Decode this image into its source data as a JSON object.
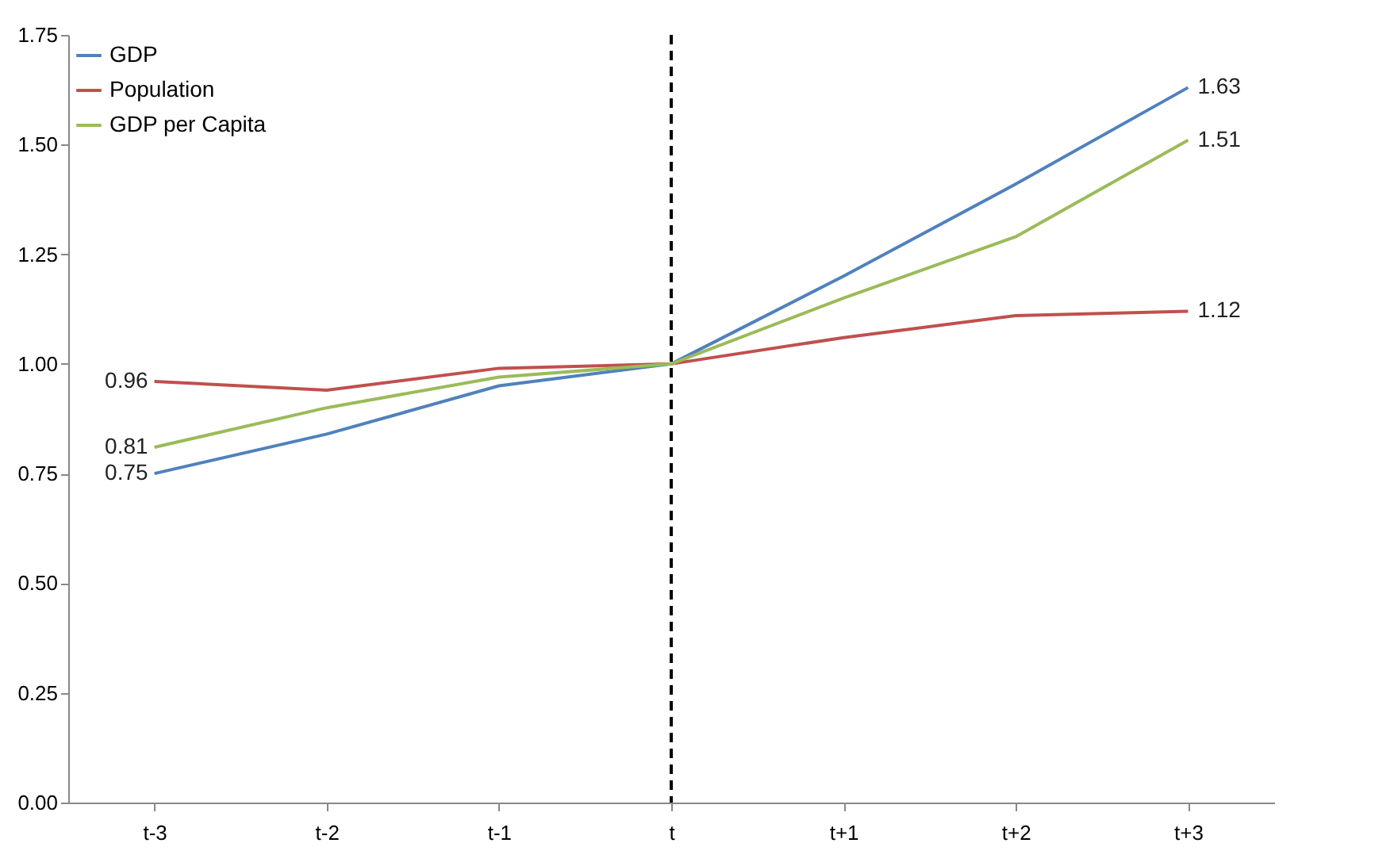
{
  "chart_data": {
    "type": "line",
    "categories": [
      "t-3",
      "t-2",
      "t-1",
      "t",
      "t+1",
      "t+2",
      "t+3"
    ],
    "series": [
      {
        "name": "GDP",
        "color": "#4f81bd",
        "values": [
          0.75,
          0.84,
          0.95,
          1.0,
          1.2,
          1.41,
          1.63
        ],
        "value_labels": [
          "0.75",
          null,
          null,
          null,
          null,
          null,
          "1.63"
        ]
      },
      {
        "name": "Population",
        "color": "#c0504d",
        "values": [
          0.96,
          0.94,
          0.99,
          1.0,
          1.06,
          1.11,
          1.12
        ],
        "value_labels": [
          "0.96",
          null,
          null,
          null,
          null,
          null,
          "1.12"
        ]
      },
      {
        "name": "GDP per Capita",
        "color": "#9bbb59",
        "values": [
          0.81,
          0.9,
          0.97,
          1.0,
          1.15,
          1.29,
          1.51
        ],
        "value_labels": [
          "0.81",
          null,
          null,
          null,
          null,
          null,
          "1.51"
        ]
      }
    ],
    "ylim": [
      0,
      1.75
    ],
    "yticks": [
      {
        "value": 0,
        "label": "0.00"
      },
      {
        "value": 0.25,
        "label": "0.25"
      },
      {
        "value": 0.5,
        "label": "0.50"
      },
      {
        "value": 0.75,
        "label": "0.75"
      },
      {
        "value": 1,
        "label": "1.00"
      },
      {
        "value": 1.25,
        "label": "1.25"
      },
      {
        "value": 1.5,
        "label": "1.50"
      },
      {
        "value": 1.75,
        "label": "1.75"
      }
    ],
    "ref_lines": [
      {
        "axis": "x",
        "value": "t",
        "color": "#000000",
        "line_style": "dashed"
      }
    ],
    "grid": false,
    "legend": "top left",
    "marker": "none",
    "line_style": "solid"
  }
}
